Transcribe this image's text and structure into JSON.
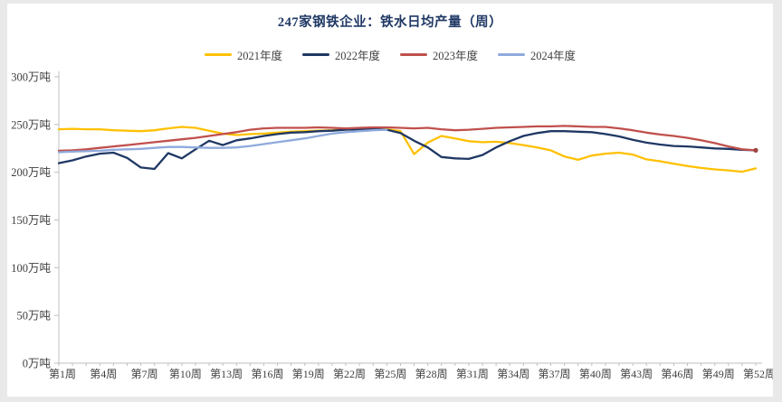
{
  "page": {
    "background_color": "#e9e9e9",
    "card_color": "#ffffff"
  },
  "chart": {
    "title_color": "#1F3864",
    "axis_line_color": "#BFBFBF",
    "axis_text_color": "#404040",
    "legend_text_color": "#404040"
  },
  "chart_data": {
    "type": "line",
    "title": "247家钢铁企业：铁水日均产量（周）",
    "xlabel": "",
    "ylabel": "万吨",
    "ylim": [
      0,
      300
    ],
    "ytick_step": 50,
    "ytick_labels": [
      "0万吨",
      "50万吨",
      "100万吨",
      "150万吨",
      "200万吨",
      "250万吨",
      "300万吨"
    ],
    "x_weeks_total": 52,
    "x_tick_weeks": [
      1,
      4,
      7,
      10,
      13,
      16,
      19,
      22,
      25,
      28,
      31,
      34,
      37,
      40,
      43,
      46,
      49,
      52
    ],
    "x_tick_labels": [
      "第1周",
      "第4周",
      "第7周",
      "第10周",
      "第13周",
      "第16周",
      "第19周",
      "第22周",
      "第25周",
      "第28周",
      "第31周",
      "第34周",
      "第37周",
      "第40周",
      "第43周",
      "第46周",
      "第49周",
      "第52周"
    ],
    "grid": false,
    "legend_position": "top",
    "series": [
      {
        "name": "2021年度",
        "color": "#FFC000",
        "end_marker": false,
        "values": [
          245,
          245.5,
          245,
          245,
          244,
          243.5,
          243,
          244,
          246,
          247.5,
          246.5,
          243.5,
          240.5,
          239,
          240,
          240.5,
          241.5,
          242.5,
          243,
          243.5,
          244,
          245,
          245.5,
          245.5,
          245,
          243,
          219,
          231,
          238,
          235.5,
          232.5,
          231.5,
          232,
          230.5,
          228.5,
          226,
          223,
          216.5,
          213,
          217.5,
          219.5,
          220.5,
          218.5,
          213.5,
          211.5,
          209,
          206.5,
          204.5,
          203,
          202,
          200.5,
          204
        ]
      },
      {
        "name": "2022年度",
        "color": "#1F3864",
        "end_marker": false,
        "values": [
          209.5,
          212.5,
          216.5,
          219.5,
          220.5,
          215,
          205,
          203.5,
          220,
          214.5,
          224,
          233,
          228.5,
          233.5,
          235.5,
          238,
          240,
          241.5,
          242,
          243,
          243.5,
          244.5,
          245,
          245.5,
          244.5,
          241,
          233,
          226,
          216,
          214.5,
          214,
          218,
          226,
          232.5,
          238,
          241,
          243,
          243,
          242.5,
          242,
          240,
          237.5,
          234,
          231,
          229,
          227.5,
          227,
          226,
          225,
          224.5,
          223.5,
          223
        ]
      },
      {
        "name": "2023年度",
        "color": "#C0504D",
        "end_marker": true,
        "values": [
          222.5,
          223,
          224,
          225.5,
          227,
          228.5,
          230,
          231.5,
          233,
          234.5,
          236,
          238,
          240,
          242,
          244.5,
          246,
          246.5,
          246.5,
          246.5,
          247,
          246.5,
          246,
          246.5,
          247,
          247,
          246.5,
          246,
          246.5,
          245,
          244,
          244.5,
          245.5,
          246.5,
          247,
          247.5,
          248,
          248,
          248.5,
          248,
          247.5,
          247.5,
          246,
          244,
          241.5,
          239.5,
          238,
          236,
          233.5,
          230.5,
          227,
          224,
          223
        ]
      },
      {
        "name": "2024年度",
        "color": "#8FAADC",
        "end_marker": false,
        "values": [
          221,
          221.5,
          222,
          222.5,
          223.5,
          224,
          224.5,
          225.5,
          226.5,
          226.5,
          226,
          225.5,
          225.5,
          226,
          227.5,
          229.5,
          231.5,
          233.5,
          235.5,
          238,
          240.5,
          242,
          243,
          244,
          244.5
        ]
      }
    ]
  }
}
